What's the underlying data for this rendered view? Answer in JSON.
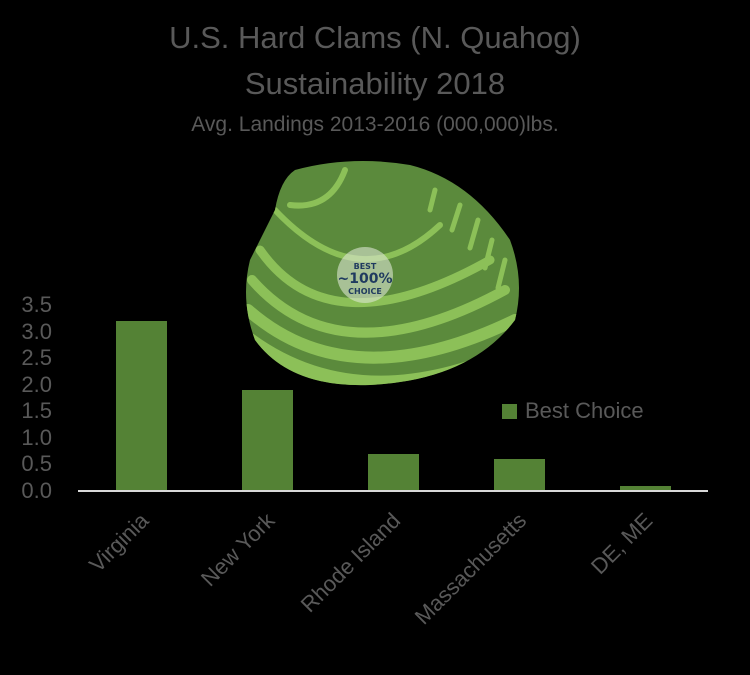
{
  "chart_data": {
    "type": "bar",
    "title": "U.S. Hard Clams (N. Quahog)",
    "subtitle_line2": "Sustainability 2018",
    "subtitle": "Avg. Landings 2013-2016 (000,000)lbs.",
    "categories": [
      "Virginia",
      "New York",
      "Rhode Island",
      "Massachusetts",
      "DE, ME"
    ],
    "series": [
      {
        "name": "Best Choice",
        "color": "#548235",
        "values": [
          3.2,
          1.9,
          0.7,
          0.6,
          0.1
        ]
      }
    ],
    "xlabel": "",
    "ylabel": "",
    "ylim": [
      0,
      3.5
    ],
    "yticks": [
      "3.5",
      "3.0",
      "2.5",
      "2.0",
      "1.5",
      "1.0",
      "0.5",
      "0.0"
    ],
    "grid": false,
    "legend_position": "right, inside plot",
    "annotation": {
      "badge_line1": "BEST",
      "badge_line2": "~100%",
      "badge_line3": "CHOICE",
      "icon": "clam-shell-illustration"
    }
  },
  "background_color": "#000000",
  "legend": {
    "label": "Best Choice"
  }
}
